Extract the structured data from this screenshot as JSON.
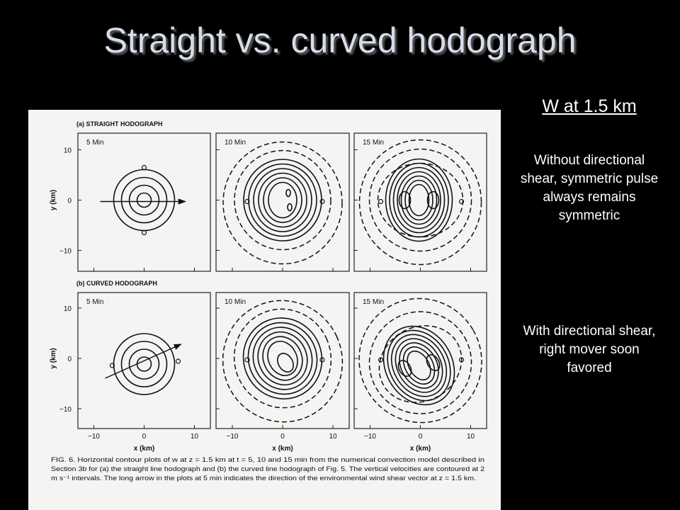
{
  "title": "Straight vs. curved hodograph",
  "sidebar": {
    "heading": "W at 1.5 km",
    "notes": [
      "Without directional shear, symmetric pulse always remains symmetric",
      "With directional shear, right mover soon favored"
    ]
  },
  "figure": {
    "panels": [
      {
        "label": "(a) STRAIGHT HODOGRAPH",
        "times": [
          "5 Min",
          "10 Min",
          "15 Min"
        ]
      },
      {
        "label": "(b) CURVED HODOGRAPH",
        "times": [
          "5 Min",
          "10 Min",
          "15 Min"
        ]
      }
    ],
    "y_axis_label": "y (km)",
    "x_axis_label": "x (km)",
    "yticks": [
      "10",
      "0",
      "−10"
    ],
    "xticks": [
      "−10",
      "0",
      "10"
    ],
    "caption": [
      "FIG. 6. Horizontal contour plots of w at z = 1.5 km at t = 5, 10 and 15 min from the numerical convection model described in",
      "Section 3b for (a) the straight line hodograph and (b) the curved line hodograph of Fig. 5. The vertical velocities are contoured at 2",
      "m s⁻¹ intervals. The long arrow in the plots at 5 min indicates the direction of the environmental wind shear vector at z = 1.5 km."
    ]
  }
}
